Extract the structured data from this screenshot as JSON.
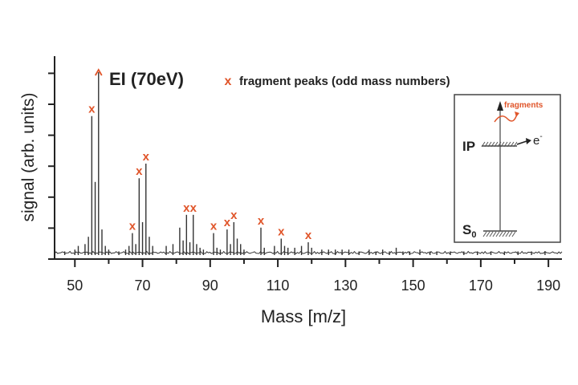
{
  "chart_data": {
    "type": "line",
    "title": "EI (70eV)",
    "xlabel": "Mass [m/z]",
    "ylabel": "signal (arb. units)",
    "xlim": [
      44,
      194
    ],
    "ylim": [
      0,
      100
    ],
    "x_ticks": [
      50,
      70,
      90,
      110,
      130,
      150,
      170,
      190
    ],
    "grid": false,
    "series": [
      {
        "type": "stick",
        "x": [
          47,
          50,
          51,
          53,
          54,
          55,
          56,
          57,
          58,
          59,
          60,
          63,
          65,
          66,
          67,
          68,
          69,
          70,
          71,
          72,
          73,
          77,
          79,
          81,
          82,
          83,
          84,
          85,
          86,
          87,
          88,
          91,
          92,
          93,
          95,
          96,
          97,
          98,
          99,
          100,
          105,
          106,
          109,
          111,
          112,
          113,
          115,
          117,
          119,
          120,
          123,
          125,
          127,
          129,
          131,
          134,
          137,
          139,
          141,
          143,
          145,
          147,
          149,
          152,
          155,
          157,
          161,
          165,
          169,
          173,
          177,
          181,
          185,
          189
        ],
        "values": [
          2,
          3,
          5,
          6,
          10,
          76,
          40,
          100,
          14,
          5,
          3,
          2,
          3,
          5,
          12,
          6,
          42,
          18,
          50,
          10,
          5,
          5,
          6,
          15,
          8,
          22,
          7,
          22,
          6,
          4,
          3,
          12,
          4,
          3,
          14,
          6,
          18,
          9,
          6,
          3,
          15,
          4,
          5,
          9,
          5,
          4,
          4,
          5,
          7,
          4,
          3,
          3,
          3,
          3,
          3,
          2,
          3,
          2,
          3,
          2,
          4,
          2,
          2,
          3,
          2,
          2,
          2,
          2,
          2,
          2,
          2,
          2,
          2,
          2
        ]
      }
    ],
    "legend": {
      "marker": "x",
      "label": "fragment peaks (odd mass numbers)",
      "placement": "top"
    },
    "annotations": {
      "marked_peaks_x": [
        55,
        69,
        71,
        67,
        83,
        85,
        91,
        95,
        97,
        105,
        111,
        119
      ],
      "top_peak_marker": "arrow",
      "top_peak_x": 57
    },
    "inset": {
      "type": "energy-level diagram",
      "labels": {
        "fragments": "fragments",
        "ip": "IP",
        "electron": "e",
        "electron_sup": "-",
        "ground": "S",
        "ground_sub": "0"
      }
    },
    "colors": {
      "marker": "#e0552a",
      "line": "#333333",
      "axes": "#222222"
    }
  }
}
